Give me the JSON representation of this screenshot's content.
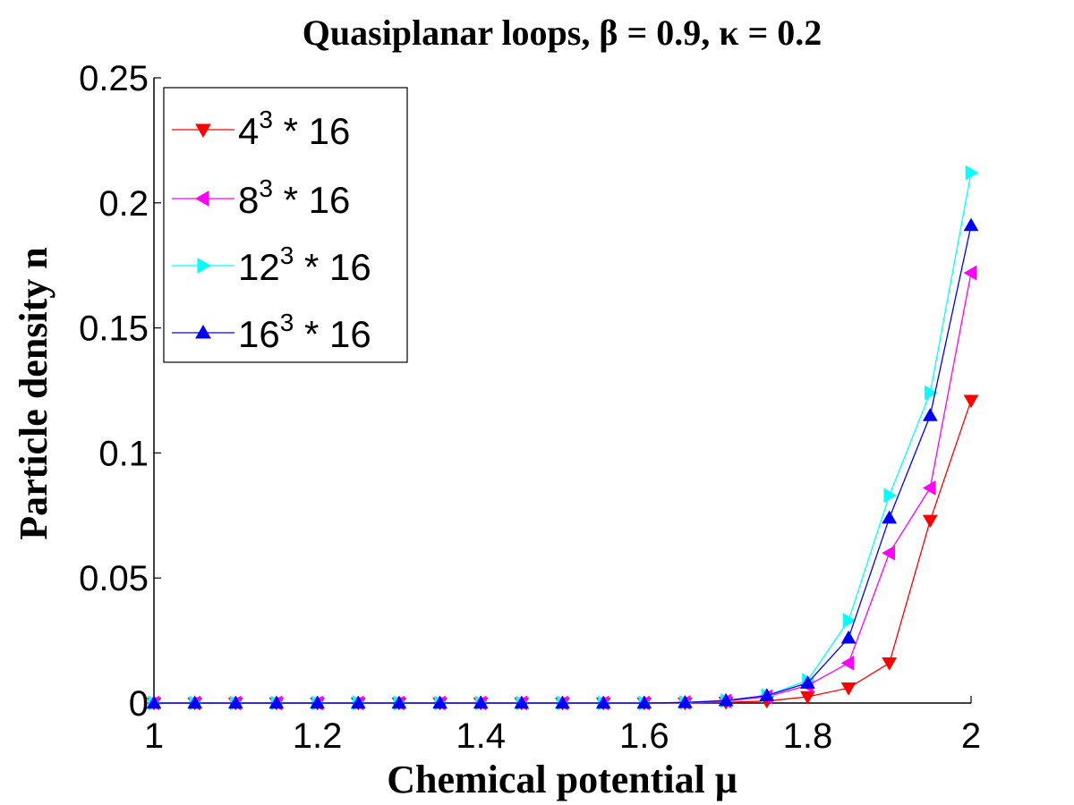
{
  "chart_data": {
    "type": "line",
    "title": "Quasiplanar loops,  β = 0.9,  κ = 0.2",
    "xlabel": "Chemical potential μ",
    "ylabel": "Particle density n",
    "xlim": [
      1,
      2
    ],
    "ylim": [
      0,
      0.25
    ],
    "xticks": [
      1,
      1.2,
      1.4,
      1.6,
      1.8,
      2
    ],
    "xtick_labels": [
      "1",
      "1.2",
      "1.4",
      "1.6",
      "1.8",
      "2"
    ],
    "yticks": [
      0,
      0.05,
      0.1,
      0.15,
      0.2,
      0.25
    ],
    "ytick_labels": [
      "0",
      "0.05",
      "0.1",
      "0.15",
      "0.2",
      "0.25"
    ],
    "grid": false,
    "legend_position": "top-left",
    "x": [
      1.0,
      1.05,
      1.1,
      1.15,
      1.2,
      1.25,
      1.3,
      1.35,
      1.4,
      1.45,
      1.5,
      1.55,
      1.6,
      1.65,
      1.7,
      1.75,
      1.8,
      1.85,
      1.9,
      1.95,
      2.0
    ],
    "series": [
      {
        "name": "4",
        "legend_base": "4",
        "legend_exp": "3",
        "legend_rest": " * 16",
        "color": "#ff0000",
        "marker": "triangle-down",
        "values": [
          0,
          0,
          0,
          0,
          0,
          0,
          0,
          0,
          0,
          0,
          0,
          0,
          0,
          0,
          0.0003,
          0.0008,
          0.0025,
          0.006,
          0.016,
          0.073,
          0.121
        ]
      },
      {
        "name": "8",
        "legend_base": "8",
        "legend_exp": "3",
        "legend_rest": " * 16",
        "color": "#ff00ff",
        "marker": "triangle-left",
        "values": [
          0,
          0,
          0,
          0,
          0,
          0,
          0,
          0,
          0,
          0,
          0,
          0,
          0,
          0.0002,
          0.0008,
          0.0025,
          0.007,
          0.016,
          0.06,
          0.086,
          0.172
        ]
      },
      {
        "name": "12",
        "legend_base": "12",
        "legend_exp": "3",
        "legend_rest": " * 16",
        "color": "#00ffff",
        "marker": "triangle-right",
        "values": [
          0,
          0,
          0,
          0,
          0,
          0,
          0,
          0,
          0,
          0,
          0,
          0,
          0,
          0.0002,
          0.001,
          0.003,
          0.009,
          0.033,
          0.083,
          0.124,
          0.212
        ]
      },
      {
        "name": "16",
        "legend_base": "16",
        "legend_exp": "3",
        "legend_rest": " * 16",
        "color": "#0000ff",
        "marker": "triangle-up",
        "values": [
          0,
          0,
          0,
          0,
          0,
          0,
          0,
          0,
          0,
          0,
          0,
          0,
          0,
          0.0002,
          0.001,
          0.003,
          0.008,
          0.026,
          0.074,
          0.115,
          0.191
        ]
      }
    ]
  }
}
